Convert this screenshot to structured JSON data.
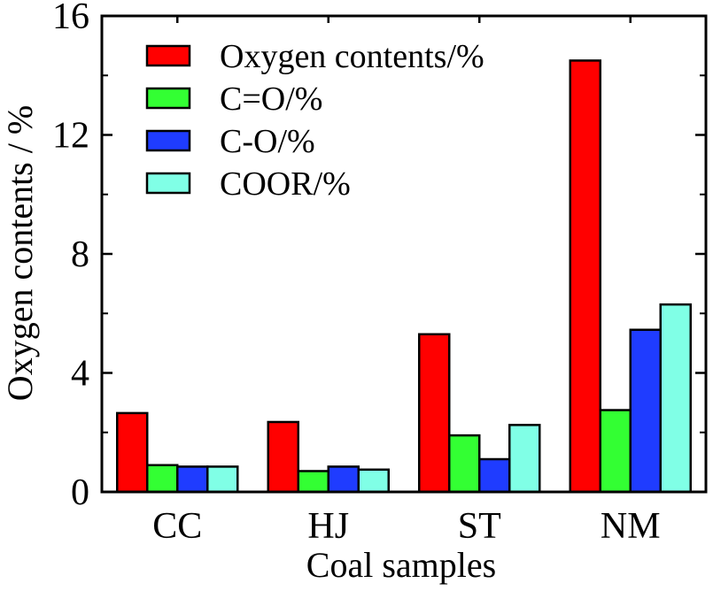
{
  "chart_data": {
    "type": "bar",
    "title": "",
    "xlabel": "Coal samples",
    "ylabel": "Oxygen contents / %",
    "categories": [
      "CC",
      "HJ",
      "ST",
      "NM"
    ],
    "ylim": [
      0,
      16
    ],
    "yticks": [
      0,
      4,
      8,
      12,
      16
    ],
    "legend_position": "top-left",
    "series": [
      {
        "name": "Oxygen contents/%",
        "color": "#ff0000",
        "values": [
          2.65,
          2.35,
          5.3,
          14.5
        ]
      },
      {
        "name": "C=O/%",
        "color": "#33ff33",
        "values": [
          0.9,
          0.7,
          1.9,
          2.75
        ]
      },
      {
        "name": "C-O/%",
        "color": "#1f3cff",
        "values": [
          0.85,
          0.85,
          1.1,
          5.45
        ]
      },
      {
        "name": "COOR/%",
        "color": "#80ffe6",
        "values": [
          0.85,
          0.75,
          2.25,
          6.3
        ]
      }
    ]
  }
}
